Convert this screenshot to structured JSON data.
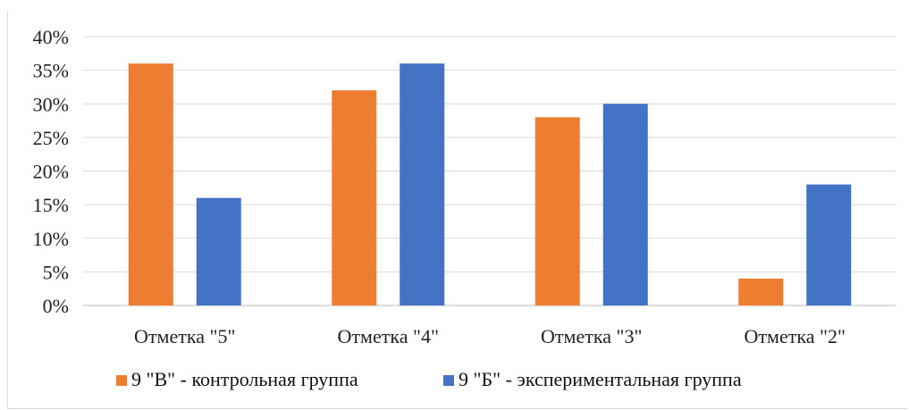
{
  "chart_data": {
    "type": "bar",
    "title": "",
    "xlabel": "",
    "ylabel": "",
    "categories": [
      "Отметка \"5\"",
      "Отметка \"4\"",
      "Отметка \"3\"",
      "Отметка \"2\""
    ],
    "series": [
      {
        "name": "9 \"В\" - контрольная группа",
        "values": [
          36,
          32,
          28,
          4
        ],
        "color": "#ED7D31"
      },
      {
        "name": "9 \"Б\" - экспериментальная группа",
        "values": [
          16,
          36,
          30,
          18
        ],
        "color": "#4472C4"
      }
    ],
    "ylim": [
      0,
      40
    ],
    "yticks": [
      "0%",
      "5%",
      "10%",
      "15%",
      "20%",
      "25%",
      "30%",
      "35%",
      "40%"
    ],
    "grid": true,
    "legend_position": "bottom"
  }
}
